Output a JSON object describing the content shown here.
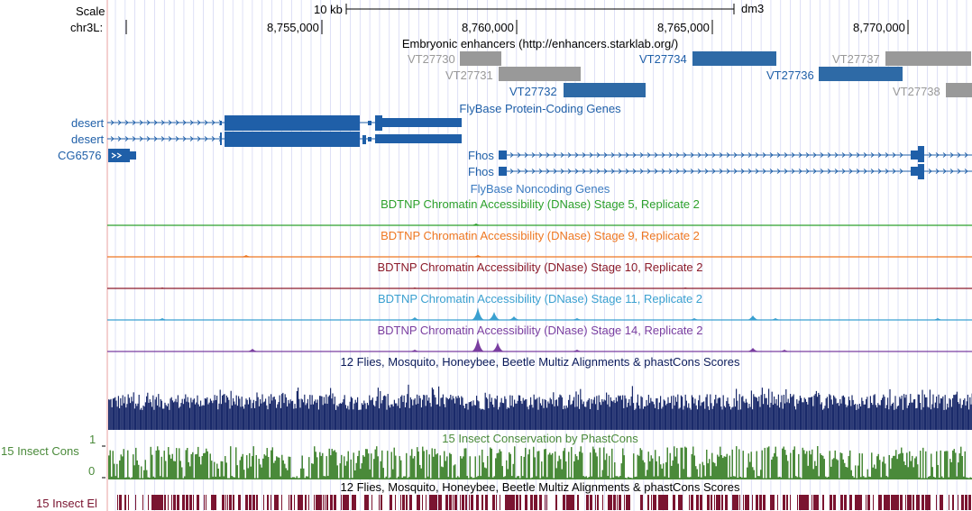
{
  "ruler": {
    "scale_label": "Scale",
    "scale_value": "10 kb",
    "assembly": "dm3",
    "chrom_label": "chr3L:",
    "ticks": [
      "8,755,000",
      "8,760,000",
      "8,765,000",
      "8,770,000"
    ]
  },
  "tracks": {
    "enhancers": {
      "title": "Embryonic enhancers (http://enhancers.starklab.org/)",
      "items": [
        "VT27730",
        "VT27731",
        "VT27732",
        "VT27734",
        "VT27736",
        "VT27737",
        "VT27738"
      ]
    },
    "protein_genes": {
      "title": "FlyBase Protein-Coding Genes",
      "genes": [
        "desert",
        "desert",
        "CG6576",
        "Fhos",
        "Fhos"
      ]
    },
    "noncoding_genes": {
      "title": "FlyBase Noncoding Genes"
    },
    "dnase": [
      {
        "title": "BDTNP Chromatin Accessibility (DNase) Stage 5, Replicate 2",
        "color": "#2ca02c"
      },
      {
        "title": "BDTNP Chromatin Accessibility (DNase) Stage 9, Replicate 2",
        "color": "#ee7722"
      },
      {
        "title": "BDTNP Chromatin Accessibility (DNase) Stage 10, Replicate 2",
        "color": "#8b1a2a"
      },
      {
        "title": "BDTNP Chromatin Accessibility (DNase) Stage 11, Replicate 2",
        "color": "#3aa0d0"
      },
      {
        "title": "BDTNP Chromatin Accessibility (DNase) Stage 14, Replicate 2",
        "color": "#7a3ea0"
      }
    ],
    "multiz": {
      "title": "12 Flies, Mosquito, Honeybee, Beetle Multiz Alignments & phastCons Scores"
    },
    "phastcons": {
      "title": "15 Insect Conservation by PhastCons",
      "side_label": "15 Insect Cons",
      "y_max": "1",
      "y_min": "0",
      "color": "#4a8a3a"
    },
    "elements": {
      "title": "12 Flies, Mosquito, Honeybee, Beetle Multiz Alignments & phastCons Scores",
      "side_label": "15 Insect El",
      "color": "#7a1430"
    }
  },
  "colors": {
    "gene_blue": "#1f5fa8",
    "enhancer_blue": "#2e6aa6",
    "enhancer_gray": "#999999",
    "multiz_navy": "#1a2a6a",
    "grid_blue": "#c8ccf0",
    "left_border": "#e8a0a0"
  }
}
